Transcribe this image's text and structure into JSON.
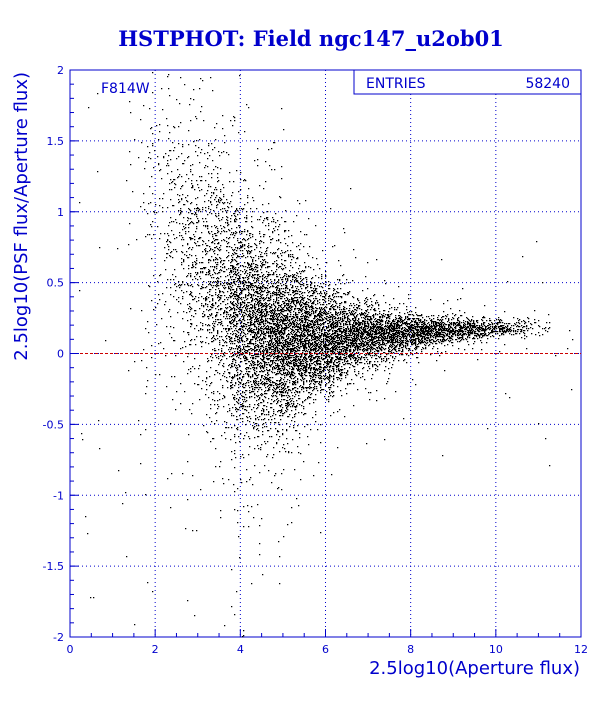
{
  "chart_data": {
    "type": "scatter",
    "title": "HSTPHOT: Field ngc147_u2ob01",
    "xlabel": "2.5log10(Aperture flux)",
    "ylabel": "2.5log10(PSF flux/Aperture flux)",
    "xlim": [
      0,
      12
    ],
    "ylim": [
      -2,
      2
    ],
    "xticks": [
      0,
      2,
      4,
      6,
      8,
      10,
      12
    ],
    "yticks": [
      -2,
      -1.5,
      -1,
      -0.5,
      0,
      0.5,
      1,
      1.5,
      2
    ],
    "xtick_labels": [
      "0",
      "2",
      "4",
      "6",
      "8",
      "10",
      "12"
    ],
    "ytick_labels": [
      "-2",
      "-1.5",
      "-1",
      "-0.5",
      "0",
      "0.5",
      "1",
      "1.5",
      "2"
    ],
    "grid": true,
    "reference_line": {
      "y": 0,
      "color": "#cc0000"
    },
    "annotation": "F814W",
    "stats_box": {
      "label": "ENTRIES",
      "value": "58240"
    },
    "entries": 58240,
    "colors": {
      "text": "#0000cc",
      "points": "#000000",
      "grid": "#0000cc",
      "reference": "#cc0000"
    },
    "density_profile": [
      {
        "x": 1.6,
        "y_center": 0.7,
        "y_spread": 0.9,
        "weight": 1
      },
      {
        "x": 2.0,
        "y_center": 0.9,
        "y_spread": 0.6,
        "weight": 3
      },
      {
        "x": 2.5,
        "y_center": 0.9,
        "y_spread": 0.45,
        "weight": 6
      },
      {
        "x": 3.0,
        "y_center": 0.7,
        "y_spread": 0.45,
        "weight": 12
      },
      {
        "x": 3.5,
        "y_center": 0.45,
        "y_spread": 0.45,
        "weight": 22
      },
      {
        "x": 4.0,
        "y_center": 0.25,
        "y_spread": 0.4,
        "weight": 34
      },
      {
        "x": 4.5,
        "y_center": 0.15,
        "y_spread": 0.33,
        "weight": 42
      },
      {
        "x": 5.0,
        "y_center": 0.1,
        "y_spread": 0.28,
        "weight": 44
      },
      {
        "x": 5.5,
        "y_center": 0.1,
        "y_spread": 0.22,
        "weight": 40
      },
      {
        "x": 6.0,
        "y_center": 0.1,
        "y_spread": 0.17,
        "weight": 34
      },
      {
        "x": 6.5,
        "y_center": 0.12,
        "y_spread": 0.13,
        "weight": 28
      },
      {
        "x": 7.0,
        "y_center": 0.13,
        "y_spread": 0.1,
        "weight": 23
      },
      {
        "x": 7.5,
        "y_center": 0.14,
        "y_spread": 0.08,
        "weight": 19
      },
      {
        "x": 8.0,
        "y_center": 0.15,
        "y_spread": 0.06,
        "weight": 16
      },
      {
        "x": 8.5,
        "y_center": 0.16,
        "y_spread": 0.05,
        "weight": 13
      },
      {
        "x": 9.0,
        "y_center": 0.17,
        "y_spread": 0.04,
        "weight": 10
      },
      {
        "x": 9.5,
        "y_center": 0.17,
        "y_spread": 0.035,
        "weight": 8
      },
      {
        "x": 10.0,
        "y_center": 0.18,
        "y_spread": 0.03,
        "weight": 5
      },
      {
        "x": 10.5,
        "y_center": 0.19,
        "y_spread": 0.03,
        "weight": 3
      },
      {
        "x": 11.0,
        "y_center": 0.2,
        "y_spread": 0.04,
        "weight": 1
      }
    ]
  }
}
